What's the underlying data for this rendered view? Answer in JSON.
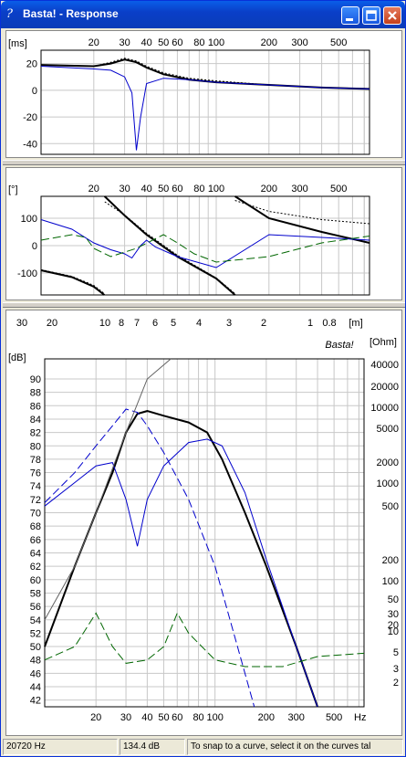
{
  "window": {
    "title": "Basta! - Response",
    "icon": "question-mark-icon",
    "buttons": [
      "minimize-icon",
      "maximize-icon",
      "close-icon"
    ]
  },
  "freq_labels": [
    "20",
    "30",
    "40",
    "50",
    "60",
    "80",
    "100",
    "200",
    "300",
    "500"
  ],
  "wavelength_labels": [
    "30",
    "20",
    "10",
    "8",
    "7",
    "6",
    "5",
    "4",
    "3",
    "2",
    "1",
    "0.8",
    "[m]"
  ],
  "watermark": "Basta!",
  "chart_data": [
    {
      "type": "line",
      "title": "",
      "ylabel": "[ms]",
      "x_scale": "log",
      "xlim": [
        10,
        750
      ],
      "ylim": [
        -48,
        30
      ],
      "y_ticks": [
        "20",
        "0",
        "-20",
        "-40"
      ],
      "series": [
        {
          "color": "#000000",
          "style": "solid",
          "points": [
            [
              10,
              19
            ],
            [
              20,
              18
            ],
            [
              25,
              20
            ],
            [
              30,
              23
            ],
            [
              35,
              21
            ],
            [
              40,
              17
            ],
            [
              50,
              12
            ],
            [
              70,
              8
            ],
            [
              100,
              6
            ],
            [
              200,
              4
            ],
            [
              400,
              2
            ],
            [
              750,
              1
            ]
          ]
        },
        {
          "color": "#000000",
          "style": "dotted",
          "points": [
            [
              10,
              19
            ],
            [
              20,
              18
            ],
            [
              25,
              21
            ],
            [
              30,
              24
            ],
            [
              35,
              22
            ],
            [
              40,
              18
            ],
            [
              50,
              13
            ],
            [
              70,
              9
            ],
            [
              100,
              7
            ],
            [
              200,
              4
            ],
            [
              400,
              2
            ],
            [
              750,
              1
            ]
          ]
        },
        {
          "color": "#0000cc",
          "style": "solid",
          "points": [
            [
              10,
              18
            ],
            [
              20,
              16
            ],
            [
              25,
              15
            ],
            [
              30,
              10
            ],
            [
              33,
              -2
            ],
            [
              35,
              -45
            ],
            [
              37,
              -20
            ],
            [
              40,
              5
            ],
            [
              50,
              9
            ],
            [
              70,
              8
            ],
            [
              100,
              6
            ],
            [
              200,
              4
            ],
            [
              400,
              2
            ],
            [
              750,
              1
            ]
          ]
        }
      ]
    },
    {
      "type": "line",
      "title": "",
      "ylabel": "[°]",
      "x_scale": "log",
      "xlim": [
        10,
        750
      ],
      "ylim": [
        -180,
        180
      ],
      "y_ticks": [
        "100",
        "0",
        "-100"
      ],
      "series": [
        {
          "color": "#000000",
          "style": "solid",
          "points": [
            [
              10,
              -90
            ],
            [
              15,
              -115
            ],
            [
              20,
              -150
            ],
            [
              23,
              -180
            ],
            [
              23.05,
              180
            ],
            [
              30,
              110
            ],
            [
              40,
              40
            ],
            [
              60,
              -40
            ],
            [
              100,
              -120
            ],
            [
              128,
              -180
            ],
            [
              128.1,
              180
            ],
            [
              200,
              100
            ],
            [
              400,
              50
            ],
            [
              750,
              10
            ]
          ]
        },
        {
          "color": "#000000",
          "style": "dotted",
          "points": [
            [
              10,
              -88
            ],
            [
              15,
              -112
            ],
            [
              20,
              -145
            ],
            [
              23,
              -175
            ],
            [
              23.1,
              160
            ],
            [
              30,
              112
            ],
            [
              40,
              45
            ],
            [
              60,
              -35
            ],
            [
              100,
              -118
            ],
            [
              128,
              -175
            ],
            [
              128.1,
              165
            ],
            [
              200,
              125
            ],
            [
              400,
              95
            ],
            [
              750,
              80
            ]
          ]
        },
        {
          "color": "#0000cc",
          "style": "solid",
          "points": [
            [
              10,
              95
            ],
            [
              15,
              60
            ],
            [
              20,
              10
            ],
            [
              25,
              -15
            ],
            [
              30,
              -30
            ],
            [
              33,
              -45
            ],
            [
              37,
              0
            ],
            [
              40,
              20
            ],
            [
              45,
              -5
            ],
            [
              60,
              -40
            ],
            [
              100,
              -80
            ],
            [
              200,
              40
            ],
            [
              400,
              30
            ],
            [
              750,
              20
            ]
          ]
        },
        {
          "color": "#006600",
          "style": "dashed",
          "points": [
            [
              10,
              20
            ],
            [
              15,
              40
            ],
            [
              18,
              30
            ],
            [
              20,
              -10
            ],
            [
              25,
              -40
            ],
            [
              35,
              -10
            ],
            [
              50,
              40
            ],
            [
              60,
              10
            ],
            [
              75,
              -30
            ],
            [
              100,
              -60
            ],
            [
              200,
              -40
            ],
            [
              400,
              10
            ],
            [
              750,
              35
            ]
          ]
        }
      ]
    },
    {
      "type": "line",
      "title": "",
      "ylabel": "[dB]",
      "y2label": "[Ohm]",
      "x_scale": "log",
      "xlim": [
        10,
        750
      ],
      "ylim": [
        41,
        93
      ],
      "y_ticks": [
        "90",
        "88",
        "86",
        "84",
        "82",
        "80",
        "78",
        "76",
        "74",
        "72",
        "70",
        "68",
        "66",
        "64",
        "62",
        "60",
        "58",
        "56",
        "54",
        "52",
        "50",
        "48",
        "46",
        "44",
        "42"
      ],
      "y2_ticks": [
        "40000",
        "20000",
        "10000",
        "5000",
        "2000",
        "1000",
        "500",
        "200",
        "100",
        "50",
        "30",
        "20",
        "10",
        "5",
        "3",
        "2"
      ],
      "x_unit": "Hz",
      "series": [
        {
          "color": "#000000",
          "style": "solid",
          "points": [
            [
              10,
              50
            ],
            [
              15,
              62
            ],
            [
              20,
              70
            ],
            [
              25,
              76
            ],
            [
              30,
              82
            ],
            [
              35,
              84.8
            ],
            [
              40,
              85.2
            ],
            [
              50,
              84.5
            ],
            [
              70,
              83.5
            ],
            [
              90,
              82
            ],
            [
              110,
              78
            ],
            [
              150,
              70
            ],
            [
              200,
              62
            ],
            [
              300,
              50
            ],
            [
              400,
              41
            ]
          ]
        },
        {
          "color": "#0000cc",
          "style": "dashed",
          "points": [
            [
              10,
              71.5
            ],
            [
              15,
              76
            ],
            [
              20,
              80
            ],
            [
              25,
              83
            ],
            [
              30,
              85.5
            ],
            [
              35,
              85
            ],
            [
              40,
              83
            ],
            [
              50,
              79
            ],
            [
              70,
              72
            ],
            [
              100,
              62
            ],
            [
              150,
              46
            ],
            [
              170,
              41
            ]
          ]
        },
        {
          "color": "#0000cc",
          "style": "solid",
          "points": [
            [
              10,
              71
            ],
            [
              15,
              74.5
            ],
            [
              20,
              77
            ],
            [
              25,
              77.5
            ],
            [
              30,
              72
            ],
            [
              35,
              65
            ],
            [
              40,
              72
            ],
            [
              50,
              77
            ],
            [
              70,
              80.5
            ],
            [
              90,
              81
            ],
            [
              110,
              80
            ],
            [
              150,
              73
            ],
            [
              200,
              63
            ],
            [
              300,
              50
            ],
            [
              400,
              41
            ]
          ]
        },
        {
          "color": "#006600",
          "style": "dashed",
          "points": [
            [
              10,
              48
            ],
            [
              15,
              50
            ],
            [
              20,
              55
            ],
            [
              25,
              50
            ],
            [
              30,
              47.5
            ],
            [
              40,
              48
            ],
            [
              50,
              50
            ],
            [
              60,
              55
            ],
            [
              70,
              52
            ],
            [
              100,
              48
            ],
            [
              150,
              47
            ],
            [
              250,
              47
            ],
            [
              400,
              48.5
            ],
            [
              750,
              49
            ]
          ]
        },
        {
          "color": "#606060",
          "style": "solid",
          "points": [
            [
              10,
              54
            ],
            [
              15,
              62
            ],
            [
              20,
              70
            ],
            [
              30,
              82
            ],
            [
              40,
              90
            ],
            [
              55,
              93
            ]
          ]
        }
      ]
    }
  ],
  "status": {
    "freq": "20720 Hz",
    "level": "134.4 dB",
    "hint": "To snap to a curve, select it on the curves tal"
  }
}
